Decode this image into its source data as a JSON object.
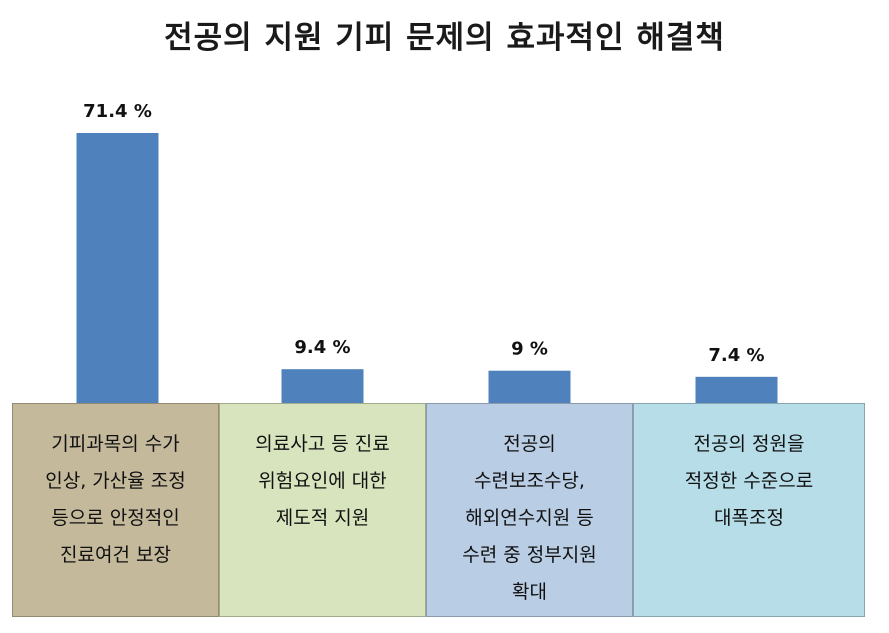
{
  "title": "전공의 지원 기피 문제의 효과적인 해결책",
  "colors": {
    "bar": "#4f81bd",
    "category_backgrounds": [
      "#c4b99b",
      "#d7e4bd",
      "#b9cde4",
      "#b6dde8"
    ]
  },
  "chart_data": {
    "type": "bar",
    "title": "전공의 지원 기피 문제의 효과적인 해결책",
    "categories": [
      "기피과목의 수가 인상, 가산율 조정 등으로 안정적인 진료여건 보장",
      "의료사고 등 진료 위험요인에 대한 제도적 지원",
      "전공의 수련보조수당, 해외연수지원 등 수련 중 정부지원 확대",
      "전공의 정원을 적정한 수준으로 대폭조정"
    ],
    "values": [
      71.4,
      9.4,
      9,
      7.4
    ],
    "value_labels": [
      "71.4 %",
      "9.4 %",
      "9 %",
      "7.4 %"
    ],
    "xlabel": "",
    "ylabel": "",
    "grid": false,
    "legend": "none"
  },
  "category_lines": [
    [
      "기피과목의 수가",
      "인상, 가산율 조정",
      "등으로 안정적인",
      "진료여건 보장"
    ],
    [
      "의료사고 등 진료",
      "위험요인에 대한",
      "제도적 지원"
    ],
    [
      "전공의",
      "수련보조수당,",
      "해외연수지원 등",
      "수련 중 정부지원",
      "확대"
    ],
    [
      "전공의 정원을",
      "적정한 수준으로",
      "대폭조정"
    ]
  ]
}
